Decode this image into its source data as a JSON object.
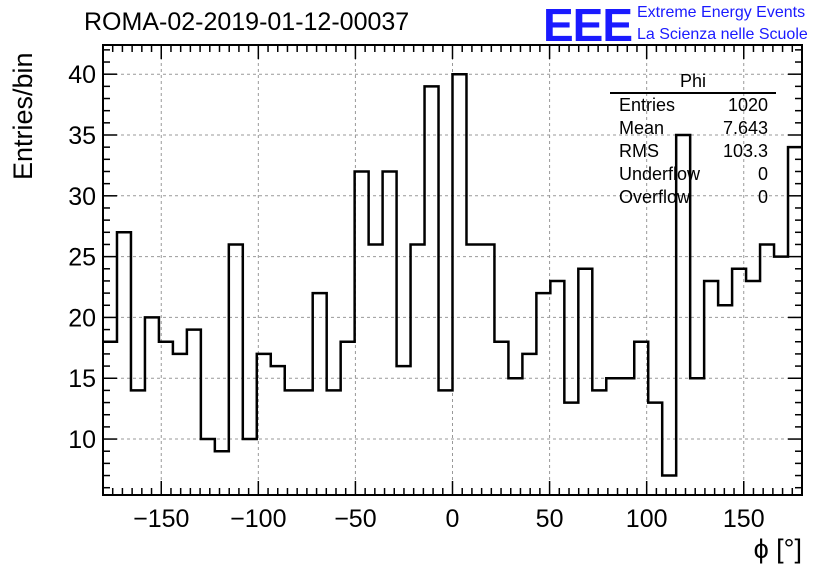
{
  "header": {
    "title": "ROMA-02-2019-01-12-00037",
    "logo": "EEE",
    "org_line1": "Extreme Energy Events",
    "org_line2": "La Scienza nelle Scuole"
  },
  "stats": {
    "name": "Phi",
    "rows": [
      {
        "label": "Entries",
        "value": "1020"
      },
      {
        "label": "Mean",
        "value": "7.643"
      },
      {
        "label": "RMS",
        "value": "103.3"
      },
      {
        "label": "Underflow",
        "value": "0"
      },
      {
        "label": "Overflow",
        "value": "0"
      }
    ]
  },
  "chart_data": {
    "type": "histogram",
    "title": "ROMA-02-2019-01-12-00037",
    "xlabel": "ϕ [°]",
    "ylabel": "Entries/bin",
    "xlim": [
      -180,
      180
    ],
    "ylim": [
      5.4,
      42.4
    ],
    "bin_width": 7.2,
    "grid": true,
    "x_ticks": [
      -150,
      -100,
      -50,
      0,
      50,
      100,
      150
    ],
    "x_tick_labels": [
      "−150",
      "−100",
      "−50",
      "0",
      "50",
      "100",
      "150"
    ],
    "y_ticks": [
      10,
      15,
      20,
      25,
      30,
      35,
      40
    ],
    "y_tick_labels": [
      "10",
      "15",
      "20",
      "25",
      "30",
      "35",
      "40"
    ],
    "values": [
      18,
      27,
      14,
      20,
      18,
      17,
      19,
      10,
      9,
      26,
      10,
      17,
      16,
      14,
      14,
      22,
      14,
      18,
      32,
      26,
      32,
      16,
      26,
      39,
      14,
      40,
      26,
      26,
      18,
      15,
      17,
      22,
      23,
      13,
      24,
      14,
      15,
      15,
      18,
      13,
      7,
      35,
      15,
      23,
      21,
      24,
      23,
      26,
      25,
      34
    ],
    "colors": {
      "line": "#000000",
      "grid": "#999999",
      "logo": "#1a1aff"
    }
  }
}
